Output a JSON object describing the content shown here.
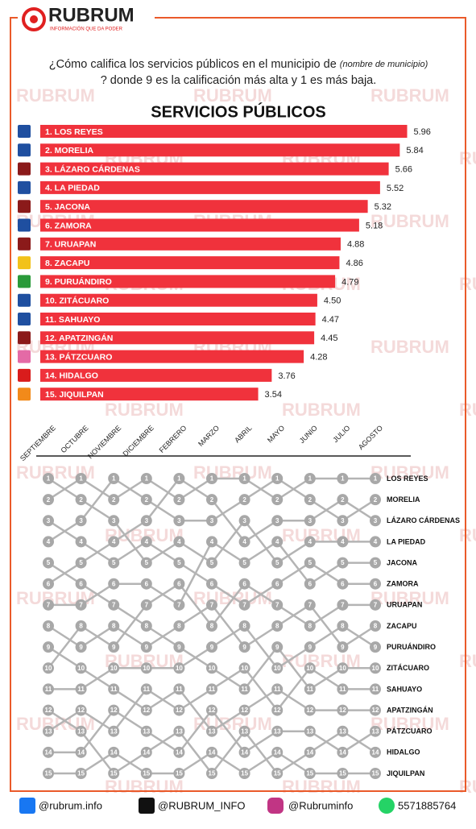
{
  "header": {
    "brand": "RUBRUM",
    "tagline": "INFORMACIÓN QUE DA PODER"
  },
  "question": {
    "before": "¿Cómo califica los servicios públicos en el municipio de ",
    "italic": "(nombre de municipio)",
    "after": "? donde 9 es la calificación más alta y 1 es más baja."
  },
  "watermark": "RUBRUM",
  "chart_data": [
    {
      "type": "bar",
      "orientation": "horizontal",
      "title": "SERVICIOS PÚBLICOS",
      "color": "#f0323c",
      "categories": [
        "1. LOS REYES",
        "2. MORELIA",
        "3. LÁZARO CÁRDENAS",
        "4. LA PIEDAD",
        "5. JACONA",
        "6. ZAMORA",
        "7. URUAPAN",
        "8. ZACAPU",
        "9. PURUÁNDIRO",
        "10. ZITÁCUARO",
        "11. SAHUAYO",
        "12. APATZINGÁN",
        "13. PÁTZCUARO",
        "14. HIDALGO",
        "15. JIQUILPAN"
      ],
      "values": [
        5.96,
        5.84,
        5.66,
        5.52,
        5.32,
        5.18,
        4.88,
        4.86,
        4.79,
        4.5,
        4.47,
        4.45,
        4.28,
        3.76,
        3.54
      ],
      "value_labels": [
        "5.96",
        "5.84",
        "5.66",
        "5.52",
        "5.32",
        "5.18",
        "4.88",
        "4.86",
        "4.79",
        "4.50",
        "4.47",
        "4.45",
        "4.28",
        "3.76",
        "3.54"
      ],
      "xlim": [
        0,
        7
      ]
    },
    {
      "type": "bump",
      "color": "#b4b4b4",
      "categories": [
        "SEPTIEMBRE",
        "OCTUBRE",
        "NOVIEMBRE",
        "DICIEMBRE",
        "FEBRERO",
        "MARZO",
        "ABRIL",
        "MAYO",
        "JUNIO",
        "JULIO",
        "AGOSTO"
      ],
      "ylim": [
        15,
        1
      ],
      "yticks": [
        1,
        2,
        3,
        4,
        5,
        6,
        7,
        8,
        9,
        10,
        11,
        12,
        13,
        14,
        15
      ],
      "series": [
        {
          "name": "LOS REYES",
          "values": [
            2,
            1,
            2,
            1,
            2,
            1,
            1,
            2,
            1,
            1,
            1
          ]
        },
        {
          "name": "MORELIA",
          "values": [
            4,
            3,
            1,
            2,
            3,
            3,
            2,
            1,
            2,
            3,
            2
          ]
        },
        {
          "name": "LÁZARO CÁRDENAS",
          "values": [
            6,
            5,
            4,
            3,
            1,
            2,
            4,
            3,
            3,
            2,
            3
          ]
        },
        {
          "name": "LA PIEDAD",
          "values": [
            1,
            2,
            3,
            5,
            4,
            5,
            3,
            5,
            4,
            4,
            4
          ]
        },
        {
          "name": "JACONA",
          "values": [
            7,
            7,
            6,
            6,
            7,
            4,
            5,
            4,
            6,
            5,
            5
          ]
        },
        {
          "name": "ZAMORA",
          "values": [
            3,
            4,
            5,
            4,
            5,
            6,
            7,
            6,
            5,
            6,
            6
          ]
        },
        {
          "name": "URUAPAN",
          "values": [
            10,
            8,
            9,
            7,
            6,
            8,
            6,
            7,
            8,
            7,
            7
          ]
        },
        {
          "name": "ZACAPU",
          "values": [
            8,
            9,
            8,
            9,
            8,
            7,
            9,
            8,
            7,
            9,
            8
          ]
        },
        {
          "name": "PURUÁNDIRO",
          "values": [
            11,
            11,
            10,
            10,
            10,
            9,
            8,
            10,
            9,
            8,
            9
          ]
        },
        {
          "name": "ZITÁCUARO",
          "values": [
            5,
            6,
            7,
            8,
            9,
            10,
            11,
            9,
            11,
            10,
            10
          ]
        },
        {
          "name": "SAHUAYO",
          "values": [
            13,
            12,
            13,
            11,
            12,
            11,
            10,
            12,
            10,
            11,
            11
          ]
        },
        {
          "name": "APATZINGÁN",
          "values": [
            9,
            10,
            11,
            12,
            11,
            13,
            12,
            11,
            12,
            12,
            12
          ]
        },
        {
          "name": "PÁTZCUARO",
          "values": [
            14,
            14,
            12,
            13,
            14,
            12,
            14,
            13,
            13,
            14,
            13
          ]
        },
        {
          "name": "HIDALGO",
          "values": [
            12,
            13,
            15,
            14,
            13,
            15,
            13,
            15,
            14,
            13,
            14
          ]
        },
        {
          "name": "JIQUILPAN",
          "values": [
            15,
            15,
            14,
            15,
            15,
            14,
            15,
            14,
            15,
            15,
            15
          ]
        }
      ]
    }
  ],
  "footer": {
    "facebook": "@rubrum.info",
    "x": "@RUBRUM_INFO",
    "instagram": "@Rubruminfo",
    "whatsapp": "5571885764"
  }
}
